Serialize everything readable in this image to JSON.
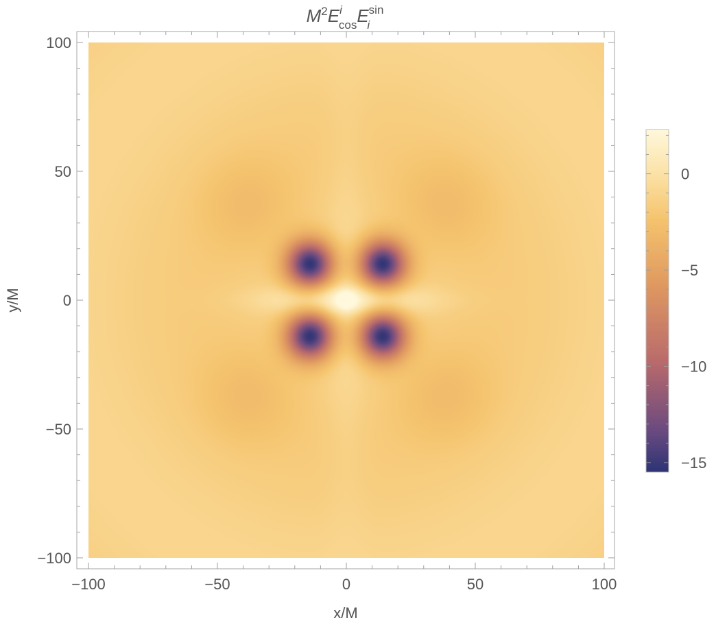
{
  "chart_data": {
    "type": "heatmap",
    "title": {
      "base": "M",
      "base_sup": "2",
      "e1": "E",
      "e1_sup": "i",
      "e1_sub": "cos",
      "e2": "E",
      "e2_sup": "sin",
      "e2_sub": "i"
    },
    "xlabel": "x/M",
    "ylabel": "y/M",
    "xlim": [
      -100,
      100
    ],
    "ylim": [
      -100,
      100
    ],
    "xticks": [
      -100,
      -50,
      0,
      50,
      100
    ],
    "yticks": [
      -100,
      -50,
      0,
      50,
      100
    ],
    "tick_labels": [
      "−100",
      "−50",
      "0",
      "50",
      "100"
    ],
    "colorbar": {
      "range": [
        -15.5,
        2.3
      ],
      "ticks": [
        0,
        -5,
        -10,
        -15
      ],
      "tick_labels": [
        "0",
        "−5",
        "−10",
        "−15"
      ],
      "colormap": [
        "#2c3475",
        "#6a4a80",
        "#b96a6c",
        "#e09a60",
        "#f5c46e",
        "#fbe0a2",
        "#fff8dc"
      ]
    },
    "field_features": {
      "negative_wells": [
        {
          "x": -14,
          "y": 14,
          "value": -15.5
        },
        {
          "x": 14,
          "y": 14,
          "value": -15.5
        },
        {
          "x": -14,
          "y": -14,
          "value": -15.5
        },
        {
          "x": 14,
          "y": -14,
          "value": -15.5
        }
      ],
      "background_value": -1.4,
      "center_value": 2.3,
      "bright_lobes_axis": "x",
      "secondary_lobes": [
        {
          "x": -38,
          "y": 37,
          "value": -2.6
        },
        {
          "x": 38,
          "y": 37,
          "value": -2.6
        },
        {
          "x": -38,
          "y": -37,
          "value": -2.6
        },
        {
          "x": 38,
          "y": -37,
          "value": -2.6
        }
      ]
    }
  }
}
